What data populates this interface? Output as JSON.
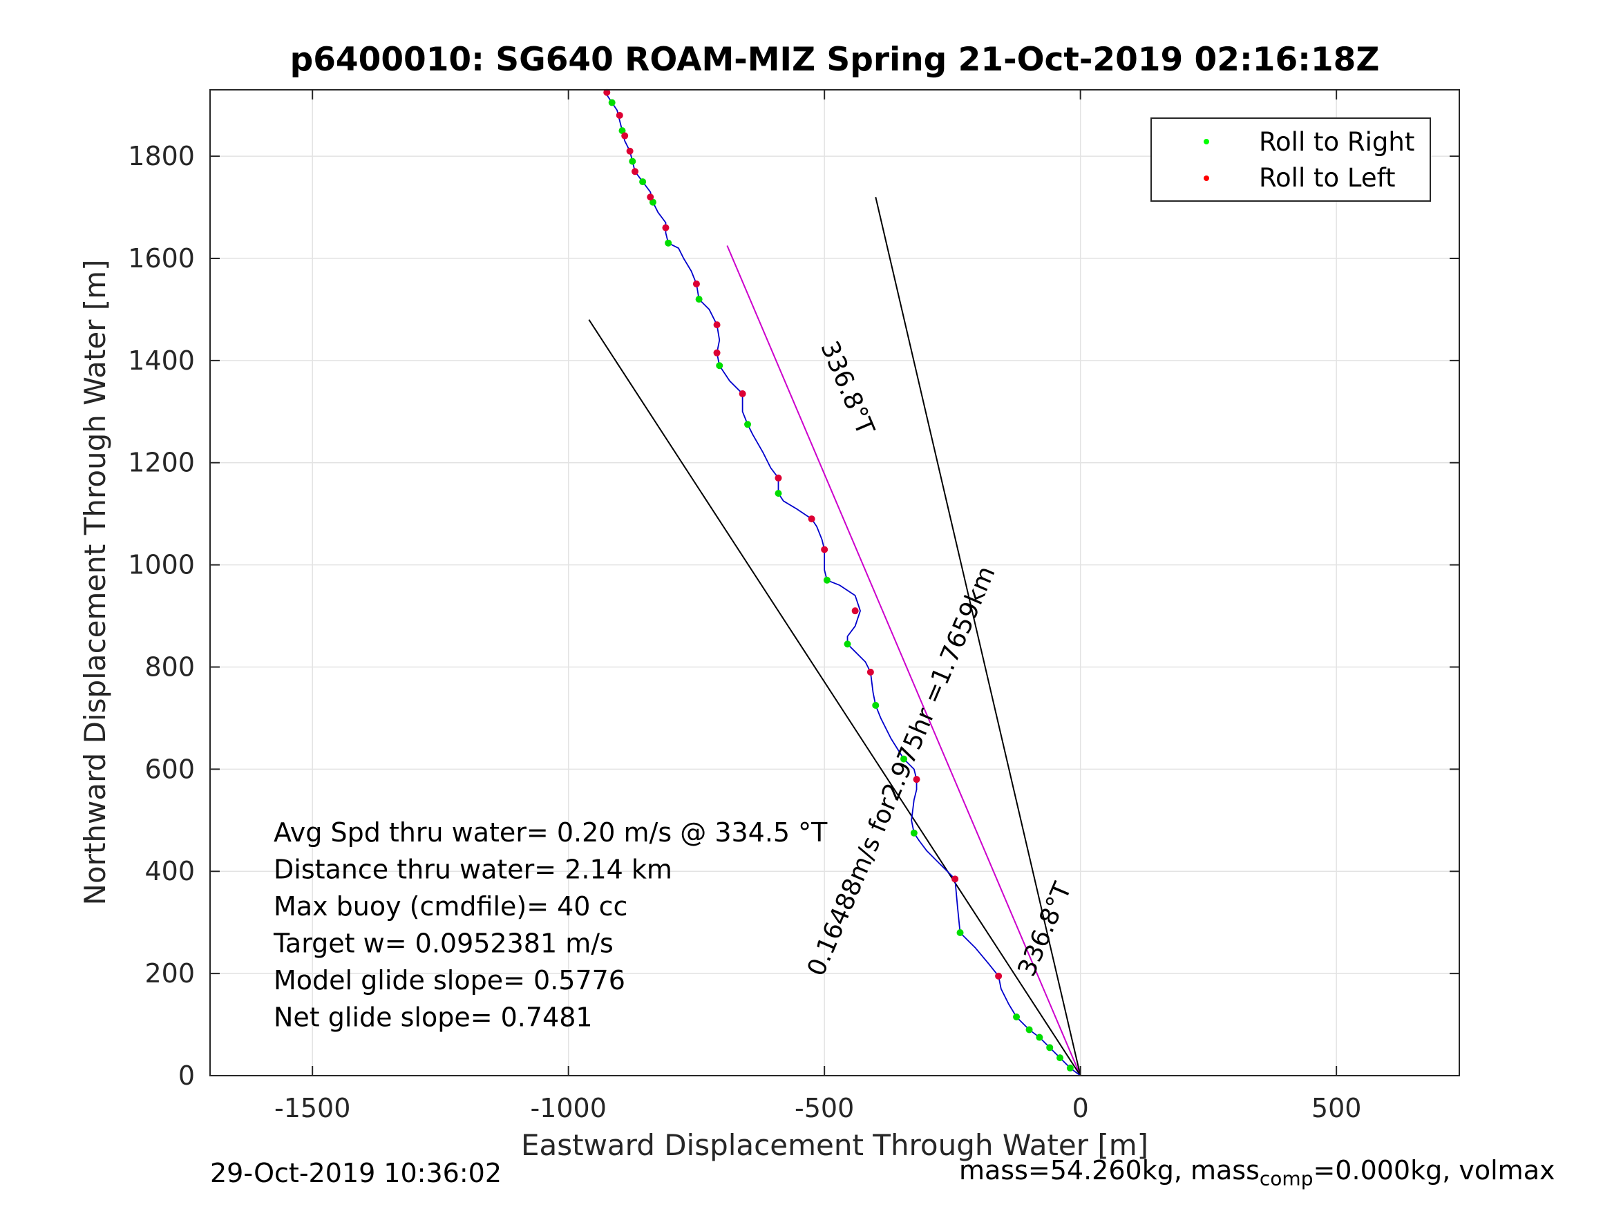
{
  "chart_data": {
    "type": "scatter",
    "title": "p6400010: SG640 ROAM-MIZ Spring 21-Oct-2019 02:16:18Z",
    "xlabel": "Eastward Displacement Through Water [m]",
    "ylabel": "Northward Displacement Through Water [m]",
    "xlim": [
      -1700,
      740
    ],
    "ylim": [
      0,
      1930
    ],
    "xticks": [
      -1500,
      -1000,
      -500,
      0,
      500
    ],
    "yticks": [
      0,
      200,
      400,
      600,
      800,
      1000,
      1200,
      1400,
      1600,
      1800
    ],
    "grid": true,
    "legend": {
      "position": "top-right",
      "entries": [
        {
          "label": "Roll to Right",
          "color": "#00ff00"
        },
        {
          "label": "Roll to Left",
          "color": "#ff0000"
        }
      ]
    },
    "track_color": "#0000cc",
    "track": [
      [
        0,
        0
      ],
      [
        -20,
        15
      ],
      [
        -40,
        35
      ],
      [
        -60,
        55
      ],
      [
        -80,
        75
      ],
      [
        -100,
        90
      ],
      [
        -125,
        115
      ],
      [
        -140,
        140
      ],
      [
        -155,
        170
      ],
      [
        -160,
        195
      ],
      [
        -180,
        220
      ],
      [
        -205,
        250
      ],
      [
        -225,
        270
      ],
      [
        -235,
        280
      ],
      [
        -240,
        330
      ],
      [
        -245,
        385
      ],
      [
        -260,
        400
      ],
      [
        -280,
        420
      ],
      [
        -300,
        440
      ],
      [
        -315,
        460
      ],
      [
        -325,
        475
      ],
      [
        -330,
        500
      ],
      [
        -325,
        540
      ],
      [
        -320,
        560
      ],
      [
        -320,
        580
      ],
      [
        -325,
        600
      ],
      [
        -345,
        620
      ],
      [
        -370,
        660
      ],
      [
        -390,
        700
      ],
      [
        -400,
        725
      ],
      [
        -405,
        750
      ],
      [
        -410,
        790
      ],
      [
        -420,
        810
      ],
      [
        -440,
        830
      ],
      [
        -455,
        845
      ],
      [
        -455,
        860
      ],
      [
        -440,
        880
      ],
      [
        -430,
        910
      ],
      [
        -440,
        940
      ],
      [
        -470,
        960
      ],
      [
        -495,
        970
      ],
      [
        -500,
        990
      ],
      [
        -500,
        1030
      ],
      [
        -505,
        1050
      ],
      [
        -515,
        1075
      ],
      [
        -525,
        1090
      ],
      [
        -555,
        1110
      ],
      [
        -580,
        1125
      ],
      [
        -590,
        1140
      ],
      [
        -590,
        1170
      ],
      [
        -605,
        1190
      ],
      [
        -620,
        1220
      ],
      [
        -640,
        1255
      ],
      [
        -650,
        1275
      ],
      [
        -660,
        1300
      ],
      [
        -660,
        1335
      ],
      [
        -685,
        1360
      ],
      [
        -705,
        1390
      ],
      [
        -710,
        1415
      ],
      [
        -705,
        1440
      ],
      [
        -710,
        1470
      ],
      [
        -725,
        1500
      ],
      [
        -745,
        1520
      ],
      [
        -750,
        1550
      ],
      [
        -760,
        1575
      ],
      [
        -775,
        1600
      ],
      [
        -785,
        1620
      ],
      [
        -805,
        1630
      ],
      [
        -810,
        1650
      ],
      [
        -810,
        1670
      ],
      [
        -825,
        1690
      ],
      [
        -835,
        1710
      ],
      [
        -840,
        1730
      ],
      [
        -855,
        1750
      ],
      [
        -870,
        1770
      ],
      [
        -875,
        1790
      ],
      [
        -880,
        1810
      ],
      [
        -890,
        1830
      ],
      [
        -895,
        1850
      ],
      [
        -900,
        1870
      ],
      [
        -905,
        1890
      ],
      [
        -915,
        1905
      ],
      [
        -925,
        1920
      ]
    ],
    "roll_right": [
      [
        -20,
        15
      ],
      [
        -40,
        35
      ],
      [
        -60,
        55
      ],
      [
        -80,
        75
      ],
      [
        -100,
        90
      ],
      [
        -125,
        115
      ],
      [
        -235,
        280
      ],
      [
        -325,
        475
      ],
      [
        -345,
        620
      ],
      [
        -400,
        725
      ],
      [
        -455,
        845
      ],
      [
        -495,
        970
      ],
      [
        -590,
        1140
      ],
      [
        -650,
        1275
      ],
      [
        -705,
        1390
      ],
      [
        -745,
        1520
      ],
      [
        -805,
        1630
      ],
      [
        -835,
        1710
      ],
      [
        -855,
        1750
      ],
      [
        -875,
        1790
      ],
      [
        -895,
        1850
      ],
      [
        -915,
        1905
      ]
    ],
    "roll_left": [
      [
        -160,
        195
      ],
      [
        -245,
        385
      ],
      [
        -320,
        580
      ],
      [
        -410,
        790
      ],
      [
        -440,
        910
      ],
      [
        -500,
        1030
      ],
      [
        -525,
        1090
      ],
      [
        -590,
        1170
      ],
      [
        -660,
        1335
      ],
      [
        -710,
        1415
      ],
      [
        -710,
        1470
      ],
      [
        -750,
        1550
      ],
      [
        -810,
        1660
      ],
      [
        -840,
        1720
      ],
      [
        -870,
        1770
      ],
      [
        -880,
        1810
      ],
      [
        -890,
        1840
      ],
      [
        -900,
        1880
      ],
      [
        -925,
        1925
      ]
    ],
    "lines": [
      {
        "name": "heading-line-magenta",
        "color": "#cc00cc",
        "points": [
          [
            0,
            0
          ],
          [
            -690,
            1625
          ]
        ]
      },
      {
        "name": "bound-line-left",
        "color": "#000000",
        "points": [
          [
            0,
            0
          ],
          [
            -960,
            1480
          ]
        ]
      },
      {
        "name": "bound-line-right",
        "color": "#000000",
        "points": [
          [
            0,
            0
          ],
          [
            -400,
            1720
          ]
        ]
      }
    ],
    "annotations": [
      {
        "name": "annotation-heading-top",
        "text": "336.8°T",
        "x": -470,
        "y": 1340,
        "rotate": 67
      },
      {
        "name": "annotation-current",
        "text": "0.16488m/s for2.975hr =1.7659km",
        "x": -335,
        "y": 590,
        "rotate": -67
      },
      {
        "name": "annotation-heading-bottom",
        "text": "336.8°T",
        "x": -55,
        "y": 280,
        "rotate": -67
      }
    ],
    "stats": [
      "Avg Spd thru water=  0.20 m/s @ 334.5 °T",
      "Distance thru water=  2.14 km",
      "Max buoy (cmdfile)= 40 cc",
      "Target w= 0.0952381 m/s",
      "Model glide slope= 0.5776",
      "Net glide slope= 0.7481"
    ]
  },
  "footer": {
    "timestamp": "29-Oct-2019 10:36:02",
    "mass_prefix": "mass=54.260kg, mass",
    "mass_sub": "comp",
    "mass_suffix": "=0.000kg, volmax"
  }
}
